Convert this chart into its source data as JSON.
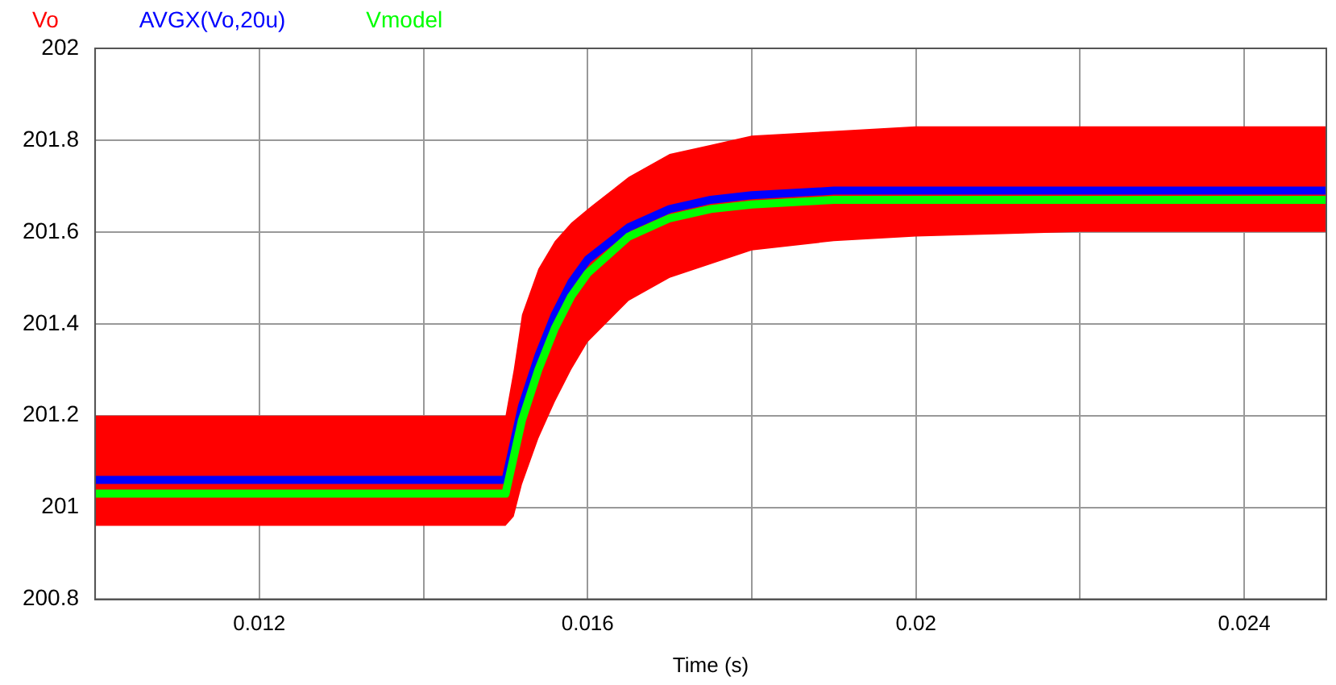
{
  "chart_data": {
    "type": "line",
    "xlabel": "Time (s)",
    "legend": "top left",
    "grid": true,
    "x": [
      0.01,
      0.015,
      0.0151,
      0.0152,
      0.0154,
      0.0156,
      0.0158,
      0.016,
      0.0165,
      0.017,
      0.0175,
      0.018,
      0.019,
      0.02,
      0.022,
      0.025
    ],
    "xlim": [
      0.01,
      0.025
    ],
    "xticks": [
      {
        "value": 0.01,
        "label": null
      },
      0.012,
      {
        "value": 0.014,
        "label": null
      },
      0.016,
      {
        "value": 0.018,
        "label": null
      },
      0.02,
      {
        "value": 0.022,
        "label": null
      },
      0.024
    ],
    "ylim": [
      200.8,
      202
    ],
    "yticks": [
      200.8,
      201,
      201.2,
      201.4,
      201.6,
      201.8,
      202
    ],
    "series": [
      {
        "name": "Vo",
        "color": "#ff0000",
        "values": [
          null,
          null,
          null,
          null,
          null,
          null,
          null,
          null,
          null,
          null,
          null,
          null,
          null,
          null,
          null,
          null
        ],
        "lower": [
          200.96,
          200.96,
          200.98,
          201.05,
          201.15,
          201.23,
          201.3,
          201.36,
          201.45,
          201.5,
          201.53,
          201.56,
          201.58,
          201.59,
          201.6,
          201.6
        ],
        "upper": [
          201.2,
          201.2,
          201.3,
          201.42,
          201.52,
          201.58,
          201.62,
          201.65,
          201.72,
          201.77,
          201.79,
          201.81,
          201.82,
          201.83,
          201.83,
          201.83
        ]
      },
      {
        "name": "AVGX(Vo,20u)",
        "color": "#0000ff",
        "values": [
          201.06,
          201.06,
          201.14,
          201.22,
          201.33,
          201.42,
          201.49,
          201.54,
          201.61,
          201.65,
          201.67,
          201.68,
          201.69,
          201.69,
          201.69,
          201.69
        ]
      },
      {
        "name": "Vmodel",
        "color": "#00ff00",
        "values": [
          201.03,
          201.03,
          201.11,
          201.19,
          201.3,
          201.39,
          201.46,
          201.51,
          201.59,
          201.63,
          201.65,
          201.66,
          201.67,
          201.67,
          201.67,
          201.67
        ]
      }
    ]
  }
}
